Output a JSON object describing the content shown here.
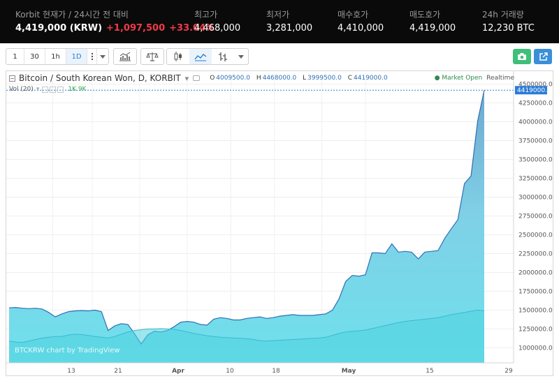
{
  "ticker": {
    "title": "Korbit 현재가 / 24시간 전 대비",
    "price": "4,419,000 (KRW)",
    "change": "+1,097,500",
    "change_pct": "+33.04%",
    "stats": [
      {
        "label": "최고가",
        "value": "4,468,000"
      },
      {
        "label": "최저가",
        "value": "3,281,000"
      },
      {
        "label": "매수호가",
        "value": "4,410,000"
      },
      {
        "label": "매도호가",
        "value": "4,419,000"
      },
      {
        "label": "24h 거래량",
        "value": "12,230 BTC"
      }
    ]
  },
  "toolbar": {
    "intervals": [
      "1",
      "30",
      "1h",
      "1D"
    ],
    "active_interval": "1D",
    "more_icon": "vertical-dots-icon",
    "icons": [
      "dropdown-caret-icon",
      "indicators-icon",
      "compare-scale-icon",
      "candle-style-icon",
      "area-style-icon",
      "bar-style-icon",
      "dropdown-caret-icon"
    ],
    "snapshot_icon": "camera-icon",
    "popout_icon": "popout-icon",
    "accent_green": "#3fbf7a",
    "accent_blue": "#3a8fd9"
  },
  "legend": {
    "symbol": "Bitcoin / South Korean Won, D, KORBIT",
    "open_label": "O",
    "open": "4009500.0",
    "high_label": "H",
    "high": "4468000.0",
    "low_label": "L",
    "low": "3999500.0",
    "close_label": "C",
    "close": "4419000.0",
    "volume_title": "Vol (20)",
    "volume_values": "1K 9K",
    "status": "● Market Open",
    "realtime": "Realtime",
    "watermark": "BTCKRW chart by TradingView"
  },
  "chart_data": {
    "type": "area",
    "title": "Bitcoin / South Korean Won, D, KORBIT",
    "price_series": {
      "name": "BTCKRW",
      "x_index_start": 0,
      "values": [
        1530000,
        1535000,
        1525000,
        1520000,
        1525000,
        1515000,
        1470000,
        1410000,
        1450000,
        1480000,
        1490000,
        1495000,
        1490000,
        1500000,
        1480000,
        1230000,
        1290000,
        1320000,
        1310000,
        1190000,
        1050000,
        1170000,
        1220000,
        1210000,
        1230000,
        1280000,
        1340000,
        1350000,
        1340000,
        1310000,
        1300000,
        1380000,
        1400000,
        1390000,
        1370000,
        1370000,
        1390000,
        1400000,
        1410000,
        1390000,
        1400000,
        1420000,
        1430000,
        1440000,
        1430000,
        1430000,
        1430000,
        1440000,
        1450000,
        1500000,
        1650000,
        1880000,
        1960000,
        1950000,
        1970000,
        2260000,
        2260000,
        2250000,
        2380000,
        2270000,
        2280000,
        2270000,
        2180000,
        2270000,
        2280000,
        2290000,
        2450000,
        2580000,
        2700000,
        3180000,
        3280000,
        4009500,
        4419000
      ]
    },
    "volume_series": {
      "name": "Vol (20)",
      "ma_values": [
        1090000,
        1075000,
        1070000,
        1090000,
        1110000,
        1130000,
        1140000,
        1150000,
        1150000,
        1170000,
        1180000,
        1175000,
        1165000,
        1150000,
        1140000,
        1130000,
        1150000,
        1180000,
        1210000,
        1230000,
        1240000,
        1250000,
        1250000,
        1255000,
        1250000,
        1245000,
        1230000,
        1210000,
        1190000,
        1175000,
        1160000,
        1150000,
        1140000,
        1135000,
        1130000,
        1125000,
        1120000,
        1110000,
        1095000,
        1090000,
        1095000,
        1100000,
        1105000,
        1110000,
        1115000,
        1120000,
        1125000,
        1130000,
        1140000,
        1165000,
        1190000,
        1210000,
        1220000,
        1225000,
        1235000,
        1255000,
        1275000,
        1295000,
        1315000,
        1335000,
        1350000,
        1360000,
        1370000,
        1380000,
        1390000,
        1400000,
        1420000,
        1440000,
        1455000,
        1470000,
        1485000,
        1500000,
        1490000
      ]
    },
    "x_ticks": [
      "13",
      "21",
      "Apr",
      "10",
      "18",
      "May",
      "15",
      "29"
    ],
    "y_ticks": [
      "1000000.0",
      "1250000.0",
      "1500000.0",
      "1750000.0",
      "2000000.0",
      "2250000.0",
      "2500000.0",
      "2750000.0",
      "3000000.0",
      "3250000.0",
      "3500000.0",
      "3750000.0",
      "4000000.0",
      "4250000.0",
      "4500000.0"
    ],
    "last_price_label": "4419000.0",
    "ylim": [
      800000,
      4560000
    ],
    "grid": true,
    "colors": {
      "price_fill_top": "#6fa8cf",
      "price_fill_bottom": "#6fe0ec",
      "price_line": "#2e6fb4",
      "volume_fill": "#4fd2de",
      "volume_bar": "#8ee0bf",
      "last_price_tag": "#2b7bd6"
    }
  }
}
